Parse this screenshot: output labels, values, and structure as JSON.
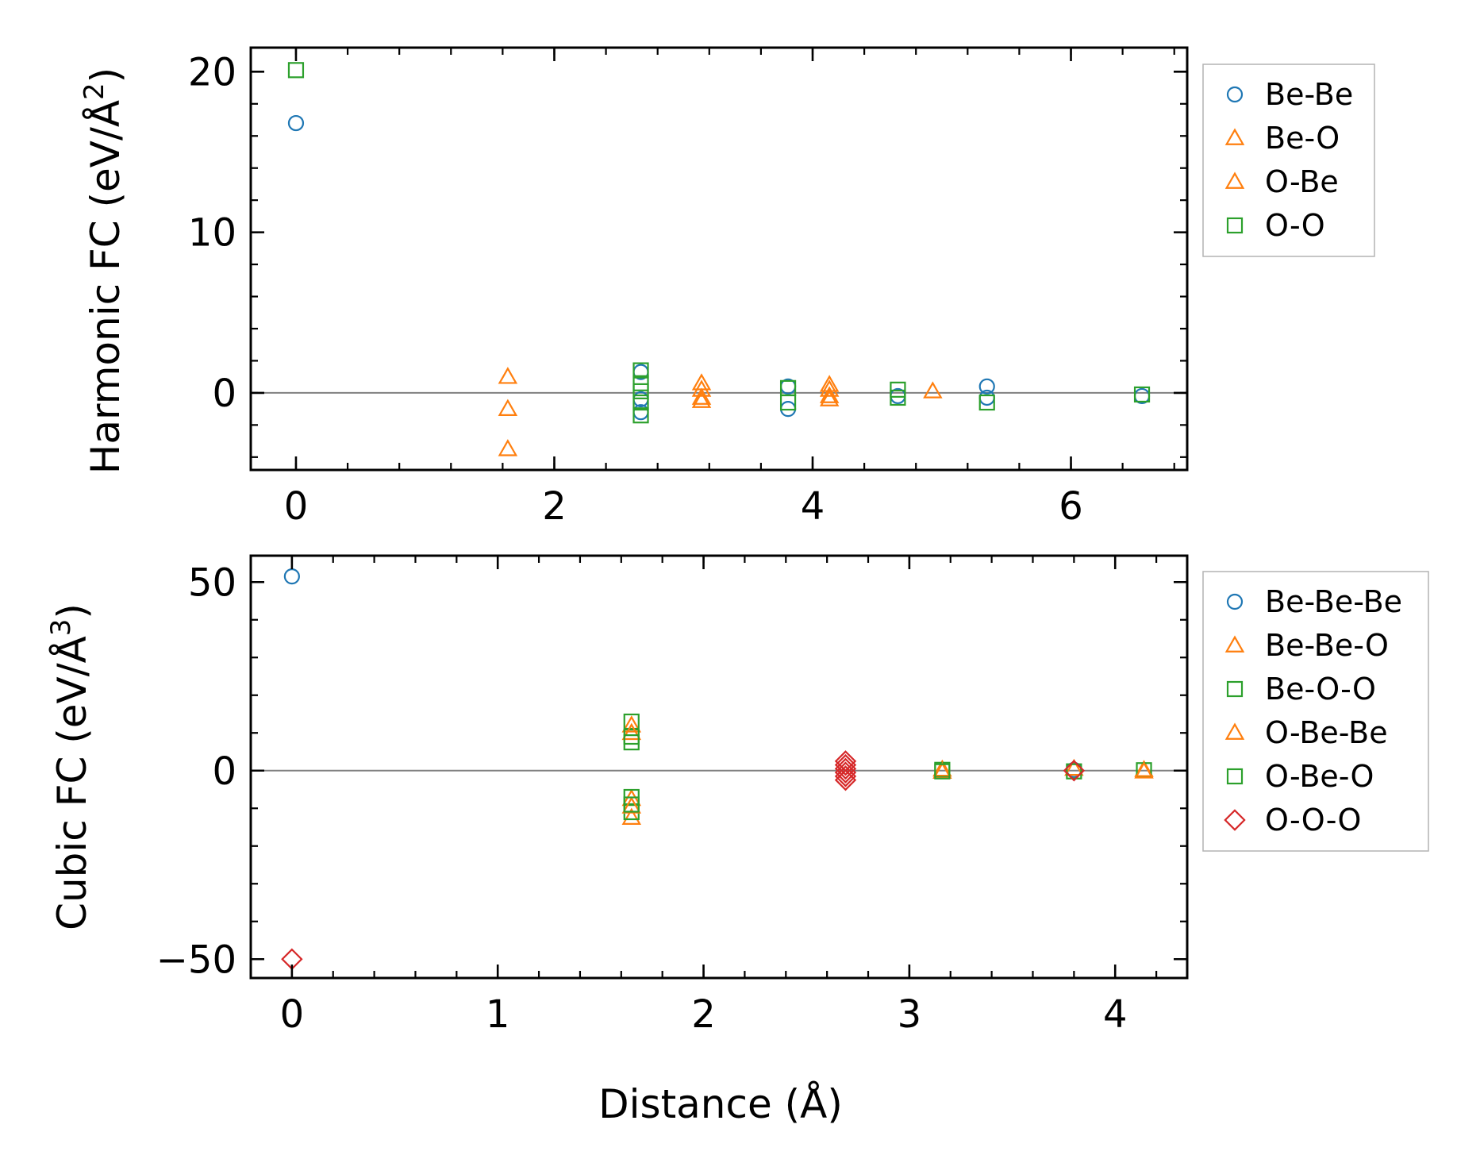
{
  "colors": {
    "blue": "#1f77b4",
    "orange": "#ff7f0e",
    "green": "#2ca02c",
    "red": "#d62728",
    "zero_line": "#808080"
  },
  "chart_data": [
    {
      "type": "scatter",
      "ylabel_main": "Harmonic FC (eV/Å",
      "ylabel_sup": "2",
      "ylabel_close": ")",
      "xlabel": "",
      "xlim": [
        -0.35,
        6.9
      ],
      "ylim": [
        -4.8,
        21.5
      ],
      "xticks": [
        0,
        2,
        4,
        6
      ],
      "xtick_labels": [
        "0",
        "2",
        "4",
        "6"
      ],
      "yticks": [
        0,
        10,
        20
      ],
      "ytick_labels": [
        "0",
        "10",
        "20"
      ],
      "x_minor_step": 0.4,
      "y_minor_step": 2,
      "zero_line": true,
      "legend_position": "outside-right",
      "series": [
        {
          "name": "Be-Be",
          "marker": "circle",
          "color": "#1f77b4",
          "filled": false,
          "points": [
            [
              0,
              16.8
            ],
            [
              2.67,
              1.3
            ],
            [
              2.67,
              -0.4
            ],
            [
              2.67,
              -1.2
            ],
            [
              3.81,
              0.4
            ],
            [
              3.81,
              -1.0
            ],
            [
              4.66,
              -0.2
            ],
            [
              5.35,
              0.4
            ],
            [
              5.35,
              -0.3
            ],
            [
              6.55,
              -0.2
            ]
          ]
        },
        {
          "name": "Be-O",
          "marker": "triangle",
          "color": "#ff7f0e",
          "filled": false,
          "points": [
            [
              1.64,
              1.0
            ],
            [
              1.64,
              -1.0
            ],
            [
              1.64,
              -3.5
            ],
            [
              3.14,
              0.6
            ],
            [
              3.14,
              -0.3
            ],
            [
              4.93,
              0.1
            ]
          ]
        },
        {
          "name": "O-Be",
          "marker": "triangle",
          "color": "#ff7f0e",
          "filled": false,
          "points": [
            [
              3.14,
              0.2
            ],
            [
              3.14,
              -0.5
            ],
            [
              4.13,
              0.5
            ],
            [
              4.13,
              0.2
            ],
            [
              4.13,
              -0.2
            ],
            [
              4.13,
              -0.4
            ]
          ]
        },
        {
          "name": "O-O",
          "marker": "square",
          "color": "#2ca02c",
          "filled": false,
          "points": [
            [
              0,
              20.1
            ],
            [
              2.67,
              1.4
            ],
            [
              2.67,
              0.6
            ],
            [
              2.67,
              0.1
            ],
            [
              2.67,
              -0.6
            ],
            [
              2.67,
              -1.4
            ],
            [
              3.81,
              0.3
            ],
            [
              3.81,
              -0.6
            ],
            [
              4.66,
              0.2
            ],
            [
              4.66,
              -0.3
            ],
            [
              5.35,
              -0.6
            ],
            [
              6.55,
              -0.1
            ]
          ]
        }
      ]
    },
    {
      "type": "scatter",
      "ylabel_main": "Cubic FC (eV/Å",
      "ylabel_sup": "3",
      "ylabel_close": ")",
      "xlabel": "Distance (Å)",
      "xlim": [
        -0.2,
        4.35
      ],
      "ylim": [
        -55,
        57
      ],
      "xticks": [
        0,
        1,
        2,
        3,
        4
      ],
      "xtick_labels": [
        "0",
        "1",
        "2",
        "3",
        "4"
      ],
      "yticks": [
        -50,
        0,
        50
      ],
      "ytick_labels": [
        "−50",
        "0",
        "50"
      ],
      "x_minor_step": 0.2,
      "y_minor_step": 10,
      "zero_line": true,
      "legend_position": "outside-right",
      "series": [
        {
          "name": "Be-Be-Be",
          "marker": "circle",
          "color": "#1f77b4",
          "filled": false,
          "points": [
            [
              0,
              51.5
            ],
            [
              3.8,
              0.2
            ]
          ]
        },
        {
          "name": "Be-Be-O",
          "marker": "triangle",
          "color": "#ff7f0e",
          "filled": false,
          "points": [
            [
              1.65,
              12.0
            ],
            [
              1.65,
              -7.5
            ],
            [
              1.65,
              -12.5
            ],
            [
              3.16,
              0.3
            ],
            [
              3.8,
              0.5
            ],
            [
              4.14,
              0.2
            ]
          ]
        },
        {
          "name": "Be-O-O",
          "marker": "square",
          "color": "#2ca02c",
          "filled": false,
          "points": [
            [
              1.65,
              13.0
            ],
            [
              1.65,
              9.0
            ],
            [
              1.65,
              -7.0
            ],
            [
              1.65,
              -11.0
            ],
            [
              3.16,
              0.2
            ],
            [
              4.14,
              0.1
            ]
          ]
        },
        {
          "name": "O-Be-Be",
          "marker": "triangle",
          "color": "#ff7f0e",
          "filled": false,
          "points": [
            [
              1.65,
              10.0
            ],
            [
              1.65,
              -9.5
            ],
            [
              3.16,
              -0.3
            ],
            [
              4.14,
              -0.2
            ]
          ]
        },
        {
          "name": "O-Be-O",
          "marker": "square",
          "color": "#2ca02c",
          "filled": false,
          "points": [
            [
              1.65,
              7.5
            ],
            [
              1.65,
              -9.0
            ],
            [
              3.16,
              -0.2
            ],
            [
              3.8,
              -0.2
            ]
          ]
        },
        {
          "name": "O-O-O",
          "marker": "diamond",
          "color": "#d62728",
          "filled": false,
          "points": [
            [
              0,
              -50.0
            ],
            [
              2.69,
              2.5
            ],
            [
              2.69,
              1.5
            ],
            [
              2.69,
              0.5
            ],
            [
              2.69,
              -0.5
            ],
            [
              2.69,
              -1.5
            ],
            [
              2.69,
              -2.5
            ],
            [
              3.8,
              0.0
            ]
          ]
        }
      ]
    }
  ]
}
